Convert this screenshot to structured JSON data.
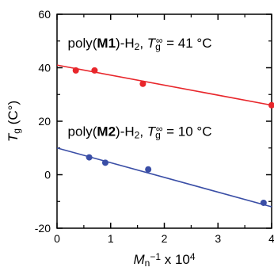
{
  "chart_data": {
    "type": "scatter",
    "title": "",
    "xlabel": {
      "main": "M",
      "sub": "n",
      "sup": "−1",
      "suffix": " x 10",
      "suffix_sup": "4"
    },
    "ylabel": {
      "main": "T",
      "sub": "g",
      "suffix": " (C°)"
    },
    "xlim": [
      0,
      4
    ],
    "ylim": [
      -20,
      60
    ],
    "xticks": [
      "0",
      "1",
      "2",
      "3",
      "4"
    ],
    "yticks": [
      "-20",
      "0",
      "20",
      "40",
      "60"
    ],
    "grid": false,
    "legend": "none",
    "series": [
      {
        "color": "#e8262b",
        "points": [
          {
            "x": 0.35,
            "y": 39
          },
          {
            "x": 0.7,
            "y": 39
          },
          {
            "x": 1.6,
            "y": 34
          },
          {
            "x": 4.0,
            "y": 26
          }
        ],
        "fit_line": {
          "intercept": 41,
          "end_x": 4.0,
          "end_y": 26
        },
        "annotation": {
          "prefix": "poly(",
          "bold": "M1",
          "middle": ")-H",
          "middle_sub": "2",
          "comma": ", ",
          "var": "T",
          "var_sub": "g",
          "var_sup": "∞",
          "value": " = 41 °C",
          "anchor": {
            "x": 0.2,
            "y": 47.5
          }
        }
      },
      {
        "color": "#3a4ea6",
        "points": [
          {
            "x": 0.6,
            "y": 6.5
          },
          {
            "x": 0.9,
            "y": 4.5
          },
          {
            "x": 1.7,
            "y": 2
          },
          {
            "x": 3.85,
            "y": -10.5
          }
        ],
        "fit_line": {
          "intercept": 10,
          "end_x": 4.0,
          "end_y": -12
        },
        "annotation": {
          "prefix": "poly(",
          "bold": "M2",
          "middle": ")-H",
          "middle_sub": "2",
          "comma": ", ",
          "var": "T",
          "var_sub": "g",
          "var_sup": "∞",
          "value": " = 10 °C",
          "anchor": {
            "x": 0.2,
            "y": 14.5
          }
        }
      }
    ]
  }
}
